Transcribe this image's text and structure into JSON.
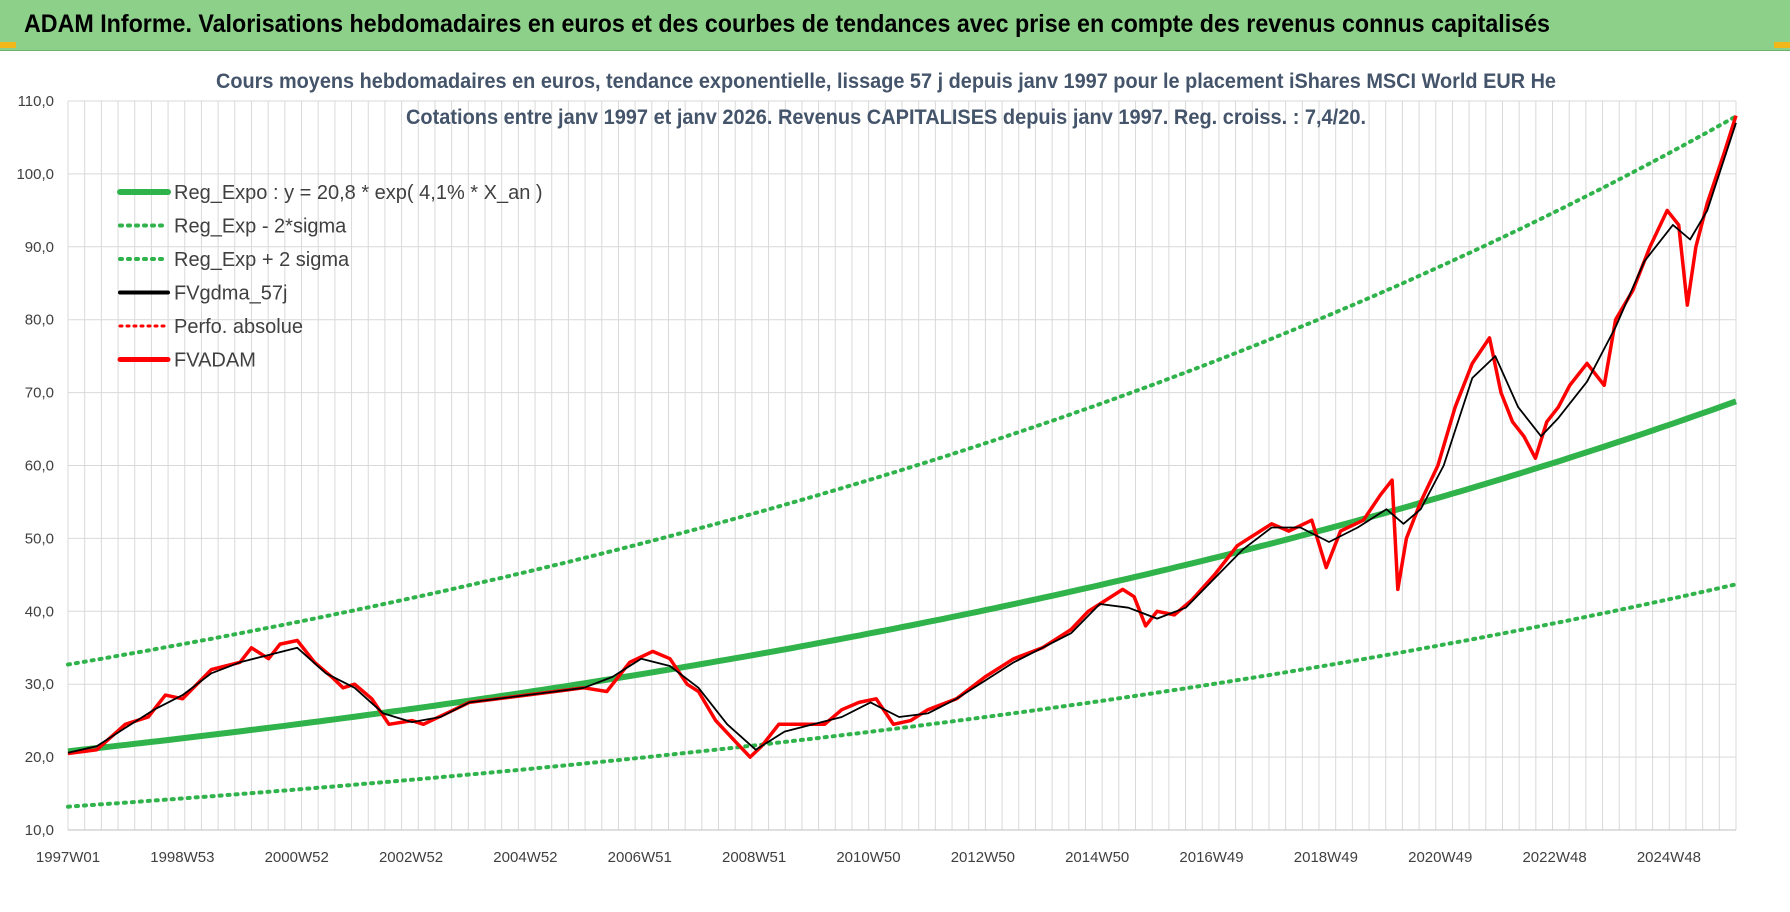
{
  "banner": {
    "title": "ADAM Informe. Valorisations hebdomadaires en euros et des courbes de tendances avec prise en compte des revenus connus capitalisés"
  },
  "colors": {
    "banner_bg": "#8dd08a",
    "trend_green": "#2fb34a",
    "fvadam_red": "#ff0000",
    "fvgdma_black": "#000000",
    "perfo_red": "#ff0000",
    "title_color": "#44546a"
  },
  "chart_data": {
    "type": "line",
    "title_line1": "Cours moyens hebdomadaires en euros, tendance exponentielle, lissage 57 j depuis janv 1997 pour le placement iShares MSCI World EUR He",
    "title_line2": "Cotations entre janv 1997 et janv 2026. Revenus CAPITALISES depuis janv 1997. Reg. croiss. : 7,4/20.",
    "x_range": [
      1997.0,
      2026.1
    ],
    "ylim": [
      10,
      110
    ],
    "y_ticks": [
      "10,0",
      "20,0",
      "30,0",
      "40,0",
      "50,0",
      "60,0",
      "70,0",
      "80,0",
      "90,0",
      "100,0",
      "110,0"
    ],
    "x_ticks": [
      "1997W01",
      "1998W53",
      "2000W52",
      "2002W52",
      "2004W52",
      "2006W51",
      "2008W51",
      "2010W50",
      "2012W50",
      "2014W50",
      "2016W49",
      "2018W49",
      "2020W49",
      "2022W48",
      "2024W48"
    ],
    "grid": true,
    "legend_position": "top-left",
    "legend": [
      {
        "label": "Reg_Expo : y = 20,8 * exp( 4,1% *  X_an )",
        "style": "solid-green"
      },
      {
        "label": "Reg_Exp - 2*sigma",
        "style": "dotted-green"
      },
      {
        "label": "Reg_Exp + 2 sigma",
        "style": "dotted-green"
      },
      {
        "label": "FVgdma_57j",
        "style": "solid-black"
      },
      {
        "label": "Perfo. absolue",
        "style": "dotted-red"
      },
      {
        "label": "FVADAM",
        "style": "solid-red"
      }
    ],
    "series": [
      {
        "name": "Reg_Expo : y = 20,8 * exp( 4,1% *  X_an )",
        "x": [
          1997.0,
          2026.1
        ],
        "y": [
          20.8,
          68.8
        ],
        "curve": "exponential"
      },
      {
        "name": "Reg_Exp - 2*sigma",
        "x": [
          1997.0,
          2026.1
        ],
        "y": [
          13.2,
          43.7
        ],
        "curve": "exponential"
      },
      {
        "name": "Reg_Exp + 2 sigma",
        "x": [
          1997.0,
          2026.1
        ],
        "y": [
          32.7,
          107.9
        ],
        "curve": "exponential"
      },
      {
        "name": "FVADAM",
        "x": [
          1997.0,
          1997.5,
          1998.0,
          1998.4,
          1998.7,
          1999.0,
          1999.5,
          2000.0,
          2000.2,
          2000.5,
          2000.7,
          2001.0,
          2001.3,
          2001.6,
          2001.8,
          2002.0,
          2002.3,
          2002.6,
          2003.0,
          2003.2,
          2003.6,
          2004.0,
          2004.5,
          2005.0,
          2005.5,
          2006.0,
          2006.4,
          2006.8,
          2007.2,
          2007.5,
          2007.8,
          2008.0,
          2008.3,
          2008.6,
          2008.9,
          2009.1,
          2009.4,
          2009.8,
          2010.2,
          2010.5,
          2010.8,
          2011.1,
          2011.4,
          2011.7,
          2012.0,
          2012.5,
          2013.0,
          2013.5,
          2014.0,
          2014.5,
          2014.8,
          2015.1,
          2015.4,
          2015.6,
          2015.8,
          2016.0,
          2016.3,
          2016.6,
          2017.0,
          2017.4,
          2017.8,
          2018.0,
          2018.3,
          2018.7,
          2018.95,
          2019.2,
          2019.6,
          2019.9,
          2020.1,
          2020.2,
          2020.35,
          2020.6,
          2020.9,
          2021.2,
          2021.5,
          2021.8,
          2022.0,
          2022.2,
          2022.4,
          2022.6,
          2022.8,
          2023.0,
          2023.2,
          2023.5,
          2023.8,
          2024.0,
          2024.3,
          2024.6,
          2024.9,
          2025.1,
          2025.25,
          2025.4,
          2025.6,
          2025.9,
          2026.1
        ],
        "y": [
          20.5,
          21.0,
          24.5,
          25.5,
          28.5,
          28.0,
          32.0,
          33.0,
          35.0,
          33.5,
          35.5,
          36.0,
          33.0,
          31.0,
          29.5,
          30.0,
          28.0,
          24.5,
          25.0,
          24.5,
          26.0,
          27.5,
          28.0,
          28.5,
          29.0,
          29.5,
          29.0,
          33.0,
          34.5,
          33.5,
          30.0,
          29.0,
          25.0,
          22.5,
          20.0,
          21.5,
          24.5,
          24.5,
          24.5,
          26.5,
          27.5,
          28.0,
          24.5,
          25.0,
          26.5,
          28.0,
          31.0,
          33.5,
          35.0,
          37.5,
          40.0,
          41.5,
          43.0,
          42.0,
          38.0,
          40.0,
          39.5,
          41.5,
          45.0,
          49.0,
          51.0,
          52.0,
          51.0,
          52.5,
          46.0,
          51.0,
          52.5,
          56.0,
          58.0,
          43.0,
          50.0,
          55.0,
          60.0,
          68.0,
          74.0,
          77.5,
          70.0,
          66.0,
          64.0,
          61.0,
          66.0,
          68.0,
          71.0,
          74.0,
          71.0,
          80.0,
          84.0,
          90.0,
          95.0,
          93.0,
          82.0,
          90.0,
          96.0,
          103.0,
          108.0
        ]
      },
      {
        "name": "FVgdma_57j",
        "x": [
          1997.0,
          1997.5,
          1998.0,
          1998.5,
          1999.0,
          1999.5,
          2000.0,
          2000.5,
          2001.0,
          2001.5,
          2002.0,
          2002.5,
          2003.0,
          2003.5,
          2004.0,
          2004.5,
          2005.0,
          2005.5,
          2006.0,
          2006.5,
          2007.0,
          2007.5,
          2008.0,
          2008.5,
          2009.0,
          2009.5,
          2010.0,
          2010.5,
          2011.0,
          2011.5,
          2012.0,
          2012.5,
          2013.0,
          2013.5,
          2014.0,
          2014.5,
          2015.0,
          2015.5,
          2016.0,
          2016.5,
          2017.0,
          2017.5,
          2018.0,
          2018.5,
          2019.0,
          2019.5,
          2020.0,
          2020.3,
          2020.6,
          2021.0,
          2021.5,
          2021.9,
          2022.3,
          2022.7,
          2023.0,
          2023.5,
          2024.0,
          2024.5,
          2025.0,
          2025.3,
          2025.6,
          2026.1
        ],
        "y": [
          20.6,
          21.5,
          24.0,
          26.5,
          28.5,
          31.5,
          33.0,
          34.0,
          35.0,
          31.5,
          29.5,
          26.0,
          24.8,
          25.5,
          27.5,
          28.0,
          28.5,
          29.0,
          29.5,
          31.0,
          33.5,
          32.5,
          29.5,
          24.5,
          21.0,
          23.5,
          24.5,
          25.5,
          27.5,
          25.5,
          26.0,
          28.0,
          30.5,
          33.0,
          35.0,
          37.0,
          41.0,
          40.5,
          39.0,
          40.5,
          44.5,
          48.5,
          51.5,
          51.5,
          49.5,
          51.5,
          54.0,
          52.0,
          54.0,
          60.0,
          72.0,
          75.0,
          68.0,
          64.0,
          66.5,
          71.5,
          79.0,
          88.0,
          93.0,
          91.0,
          95.0,
          107.0
        ]
      }
    ]
  }
}
